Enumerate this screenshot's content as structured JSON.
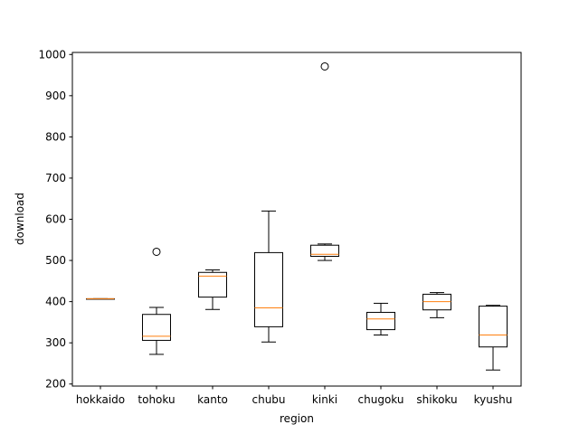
{
  "chart_data": {
    "type": "box",
    "xlabel": "region",
    "ylabel": "download",
    "ylim": [
      195,
      1005
    ],
    "yticks": [
      200,
      300,
      400,
      500,
      600,
      700,
      800,
      900,
      1000
    ],
    "grid": false,
    "categories": [
      "hokkaido",
      "tohoku",
      "kanto",
      "chubu",
      "kinki",
      "chugoku",
      "shikoku",
      "kyushu"
    ],
    "boxes": [
      {
        "category": "hokkaido",
        "whisker_low": 407,
        "q1": 407,
        "median": 407,
        "q3": 407,
        "whisker_high": 407,
        "outliers": []
      },
      {
        "category": "tohoku",
        "whisker_low": 272,
        "q1": 306,
        "median": 316,
        "q3": 369,
        "whisker_high": 386,
        "outliers": [
          521
        ]
      },
      {
        "category": "kanto",
        "whisker_low": 381,
        "q1": 411,
        "median": 462,
        "q3": 471,
        "whisker_high": 477,
        "outliers": []
      },
      {
        "category": "chubu",
        "whisker_low": 302,
        "q1": 339,
        "median": 385,
        "q3": 519,
        "whisker_high": 620,
        "outliers": []
      },
      {
        "category": "kinki",
        "whisker_low": 500,
        "q1": 510,
        "median": 515,
        "q3": 537,
        "whisker_high": 540,
        "outliers": [
          971
        ]
      },
      {
        "category": "chugoku",
        "whisker_low": 319,
        "q1": 332,
        "median": 358,
        "q3": 374,
        "whisker_high": 396,
        "outliers": []
      },
      {
        "category": "shikoku",
        "whisker_low": 361,
        "q1": 380,
        "median": 400,
        "q3": 418,
        "whisker_high": 422,
        "outliers": []
      },
      {
        "category": "kyushu",
        "whisker_low": 234,
        "q1": 290,
        "median": 319,
        "q3": 389,
        "whisker_high": 391,
        "outliers": []
      }
    ],
    "colors": {
      "box": "#000000",
      "median": "#ff7f0e",
      "outlier_edge": "#000000"
    }
  }
}
